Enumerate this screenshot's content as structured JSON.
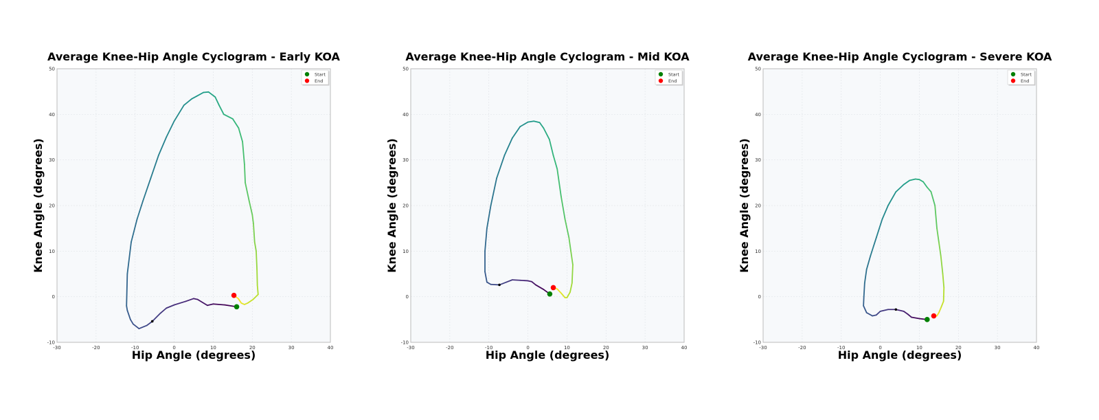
{
  "chart_data": [
    {
      "type": "line",
      "title": "Average Knee-Hip Angle Cyclogram - Early KOA",
      "xlabel": "Hip Angle (degrees)",
      "ylabel": "Knee Angle (degrees)",
      "xlim": [
        -30,
        40
      ],
      "ylim": [
        -10,
        50
      ],
      "xticks": [
        -30,
        -20,
        -10,
        0,
        10,
        20,
        30,
        40
      ],
      "yticks": [
        -10,
        0,
        10,
        20,
        30,
        40,
        50
      ],
      "grid": true,
      "legend": {
        "placement": "top-right",
        "entries": [
          "Start",
          "End"
        ]
      },
      "start": [
        16,
        -2.2
      ],
      "end": [
        15.3,
        0.3
      ],
      "arrow": [
        -5.6,
        -5.4
      ],
      "x": [
        16,
        13,
        10,
        8.5,
        6,
        5,
        3,
        0,
        -2,
        -3.5,
        -5.6,
        -7,
        -9,
        -10.5,
        -11.2,
        -12,
        -12.2,
        -12,
        -11,
        -9.5,
        -8,
        -6,
        -4,
        -2,
        0,
        2.5,
        4.5,
        5.8,
        7.5,
        8.8,
        10.5,
        11.5,
        12.7,
        15,
        16.5,
        17.5,
        18,
        18.2,
        19.2,
        20,
        20.3,
        20.6,
        21,
        21.2,
        21.3,
        21.5,
        20.2,
        18.8,
        18,
        17.2,
        16.4,
        15.3
      ],
      "y": [
        -2.2,
        -1.8,
        -1.6,
        -1.9,
        -0.6,
        -0.4,
        -1,
        -1.8,
        -2.5,
        -3.6,
        -5.4,
        -6.3,
        -7,
        -6,
        -5,
        -3,
        -2,
        5,
        12,
        17,
        21,
        26,
        31,
        35,
        38.5,
        42,
        43.4,
        44,
        44.8,
        44.9,
        43.8,
        42,
        40,
        39,
        37,
        34,
        29,
        25,
        21,
        18,
        16,
        12,
        10,
        6,
        2.5,
        0.5,
        -0.6,
        -1.4,
        -1.7,
        -1.4,
        -0.4,
        0.3
      ]
    },
    {
      "type": "line",
      "title": "Average Knee-Hip Angle Cyclogram - Mid KOA",
      "xlabel": "Hip Angle (degrees)",
      "ylabel": "Knee Angle (degrees)",
      "xlim": [
        -30,
        40
      ],
      "ylim": [
        -10,
        50
      ],
      "xticks": [
        -30,
        -20,
        -10,
        0,
        10,
        20,
        30,
        40
      ],
      "yticks": [
        -10,
        0,
        10,
        20,
        30,
        40,
        50
      ],
      "grid": true,
      "legend": {
        "placement": "top-right",
        "entries": [
          "Start",
          "End"
        ]
      },
      "start": [
        5.6,
        0.6
      ],
      "end": [
        6.5,
        2
      ],
      "arrow": [
        -7.3,
        2.6
      ],
      "x": [
        5.6,
        4,
        2,
        1,
        0,
        -2,
        -4,
        -5.5,
        -7.3,
        -9.5,
        -10.5,
        -11,
        -11,
        -10.5,
        -9.5,
        -8,
        -6,
        -4,
        -2,
        0,
        1.5,
        3,
        4,
        5.5,
        6.5,
        7.5,
        8.5,
        9.5,
        10.5,
        11,
        11.5,
        11.3,
        10.8,
        10,
        9.5,
        8.5,
        7.5,
        6.5
      ],
      "y": [
        0.6,
        1.6,
        2.6,
        3.3,
        3.5,
        3.6,
        3.7,
        3.2,
        2.6,
        2.7,
        3.2,
        5.5,
        10,
        15,
        20,
        26,
        31,
        34.8,
        37.3,
        38.3,
        38.5,
        38.2,
        37,
        34.5,
        31,
        28,
        22,
        17,
        13,
        10,
        7,
        3,
        1,
        -0.2,
        -0.2,
        0.8,
        1.7,
        2
      ]
    },
    {
      "type": "line",
      "title": "Average Knee-Hip Angle Cyclogram - Severe KOA",
      "xlabel": "Hip Angle (degrees)",
      "ylabel": "Knee Angle (degrees)",
      "xlim": [
        -30,
        40
      ],
      "ylim": [
        -10,
        50
      ],
      "xticks": [
        -30,
        -20,
        -10,
        0,
        10,
        20,
        30,
        40
      ],
      "yticks": [
        -10,
        0,
        10,
        20,
        30,
        40,
        50
      ],
      "grid": true,
      "legend": {
        "placement": "top-right",
        "entries": [
          "Start",
          "End"
        ]
      },
      "start": [
        12,
        -5
      ],
      "end": [
        13.7,
        -4.2
      ],
      "arrow": [
        4,
        -2.8
      ],
      "x": [
        12,
        10,
        8,
        7,
        6,
        4,
        2,
        0,
        -1,
        -2,
        -3.5,
        -4.3,
        -4.2,
        -4,
        -3.5,
        -2.5,
        -1,
        0.5,
        2,
        4,
        6,
        7.5,
        9,
        10,
        11,
        12,
        13,
        14,
        14.5,
        15,
        15.5,
        16,
        16.3,
        16.2,
        15.5,
        15,
        14.5,
        13.7
      ],
      "y": [
        -5,
        -4.8,
        -4.5,
        -3.8,
        -3.2,
        -2.8,
        -2.8,
        -3.2,
        -4,
        -4.2,
        -3.5,
        -2,
        0,
        3,
        6,
        9,
        13,
        17,
        20,
        23,
        24.6,
        25.5,
        25.8,
        25.7,
        25.2,
        24,
        23,
        20,
        15,
        12,
        9,
        5,
        2,
        -1,
        -2.5,
        -3.5,
        -4.2,
        -4.2
      ]
    }
  ],
  "colors": {
    "start": "#008000",
    "end": "#ff0000",
    "plot_bg": "#f7f9fb"
  }
}
